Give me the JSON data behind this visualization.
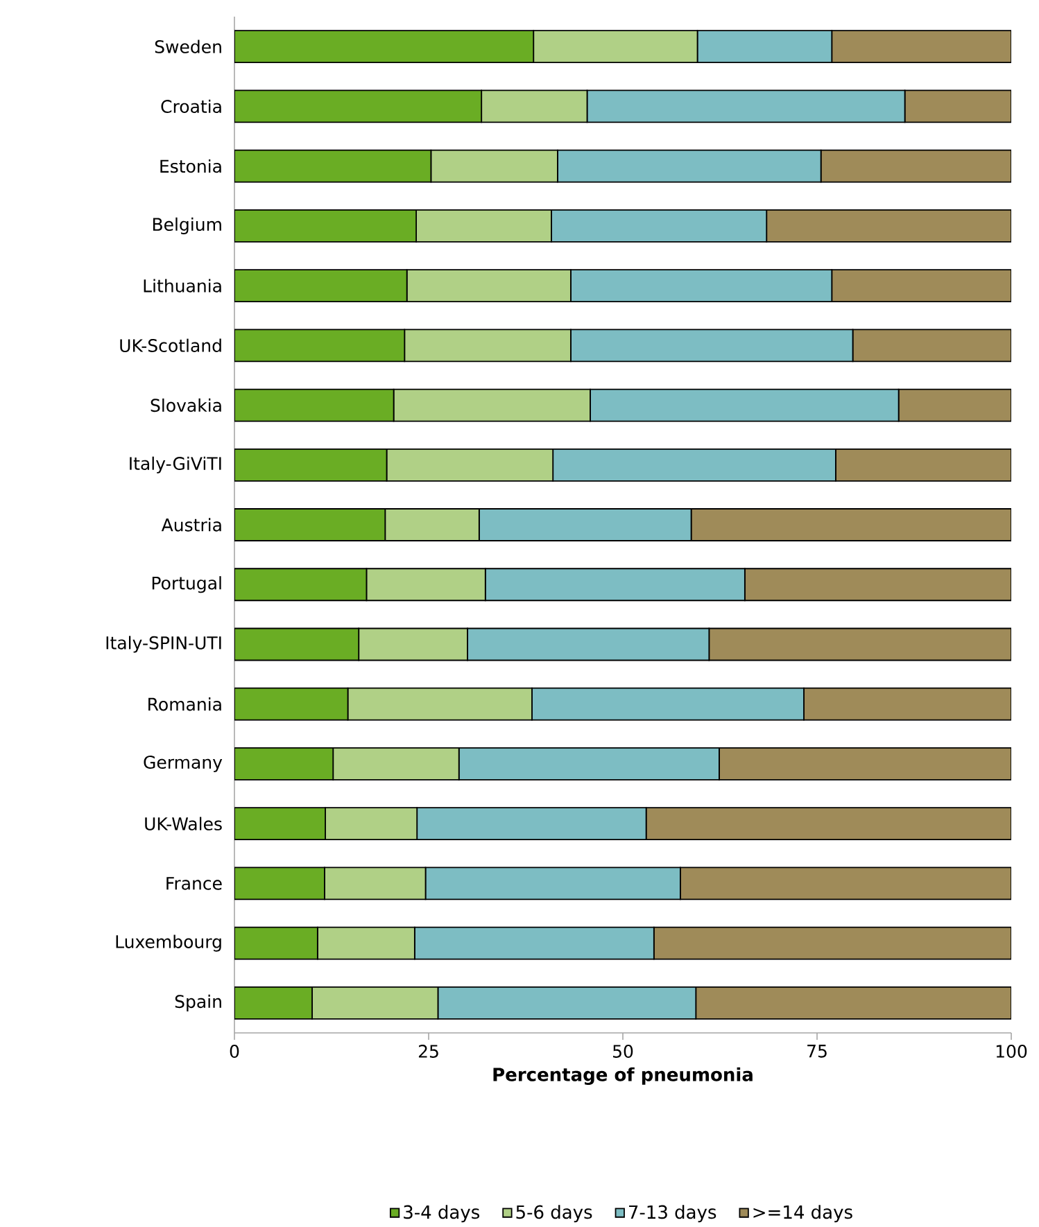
{
  "chart_data": {
    "type": "bar",
    "orientation": "horizontal",
    "stacked": true,
    "xlabel": "Percentage of pneumonia",
    "categories": [
      "Sweden",
      "Croatia",
      "Estonia",
      "Belgium",
      "Lithuania",
      "UK-Scotland",
      "Slovakia",
      "Italy-GiViTI",
      "Austria",
      "Portugal",
      "Italy-SPIN-UTI",
      "Romania",
      "Germany",
      "UK-Wales",
      "France",
      "Luxembourg",
      "Spain"
    ],
    "series": [
      {
        "name": "3-4 days",
        "color": "#6aad24",
        "values": [
          38.5,
          31.8,
          25.3,
          23.4,
          22.2,
          21.9,
          20.5,
          19.6,
          19.4,
          17.0,
          16.0,
          14.6,
          12.7,
          11.7,
          11.6,
          10.7,
          10.0
        ]
      },
      {
        "name": "5-6 days",
        "color": "#b0d086",
        "values": [
          21.1,
          13.6,
          16.3,
          17.4,
          21.1,
          21.4,
          25.3,
          21.4,
          12.1,
          15.3,
          14.0,
          23.7,
          16.2,
          11.8,
          13.0,
          12.5,
          16.2
        ]
      },
      {
        "name": "7-13 days",
        "color": "#7dbdc3",
        "values": [
          17.3,
          40.9,
          33.9,
          27.7,
          33.6,
          36.3,
          39.7,
          36.4,
          27.3,
          33.4,
          31.1,
          35.0,
          33.5,
          29.5,
          32.8,
          30.8,
          33.2
        ]
      },
      {
        "name": ">=14 days",
        "color": "#9f8b59",
        "values": [
          23.1,
          13.7,
          24.5,
          31.5,
          23.1,
          20.4,
          14.5,
          22.6,
          41.2,
          34.3,
          38.9,
          26.7,
          37.6,
          47.0,
          42.6,
          46.0,
          40.6
        ]
      }
    ],
    "xlim": [
      0,
      100
    ],
    "xticks": [
      0,
      25,
      50,
      75,
      100
    ],
    "grid": false,
    "legend": "bottom"
  }
}
